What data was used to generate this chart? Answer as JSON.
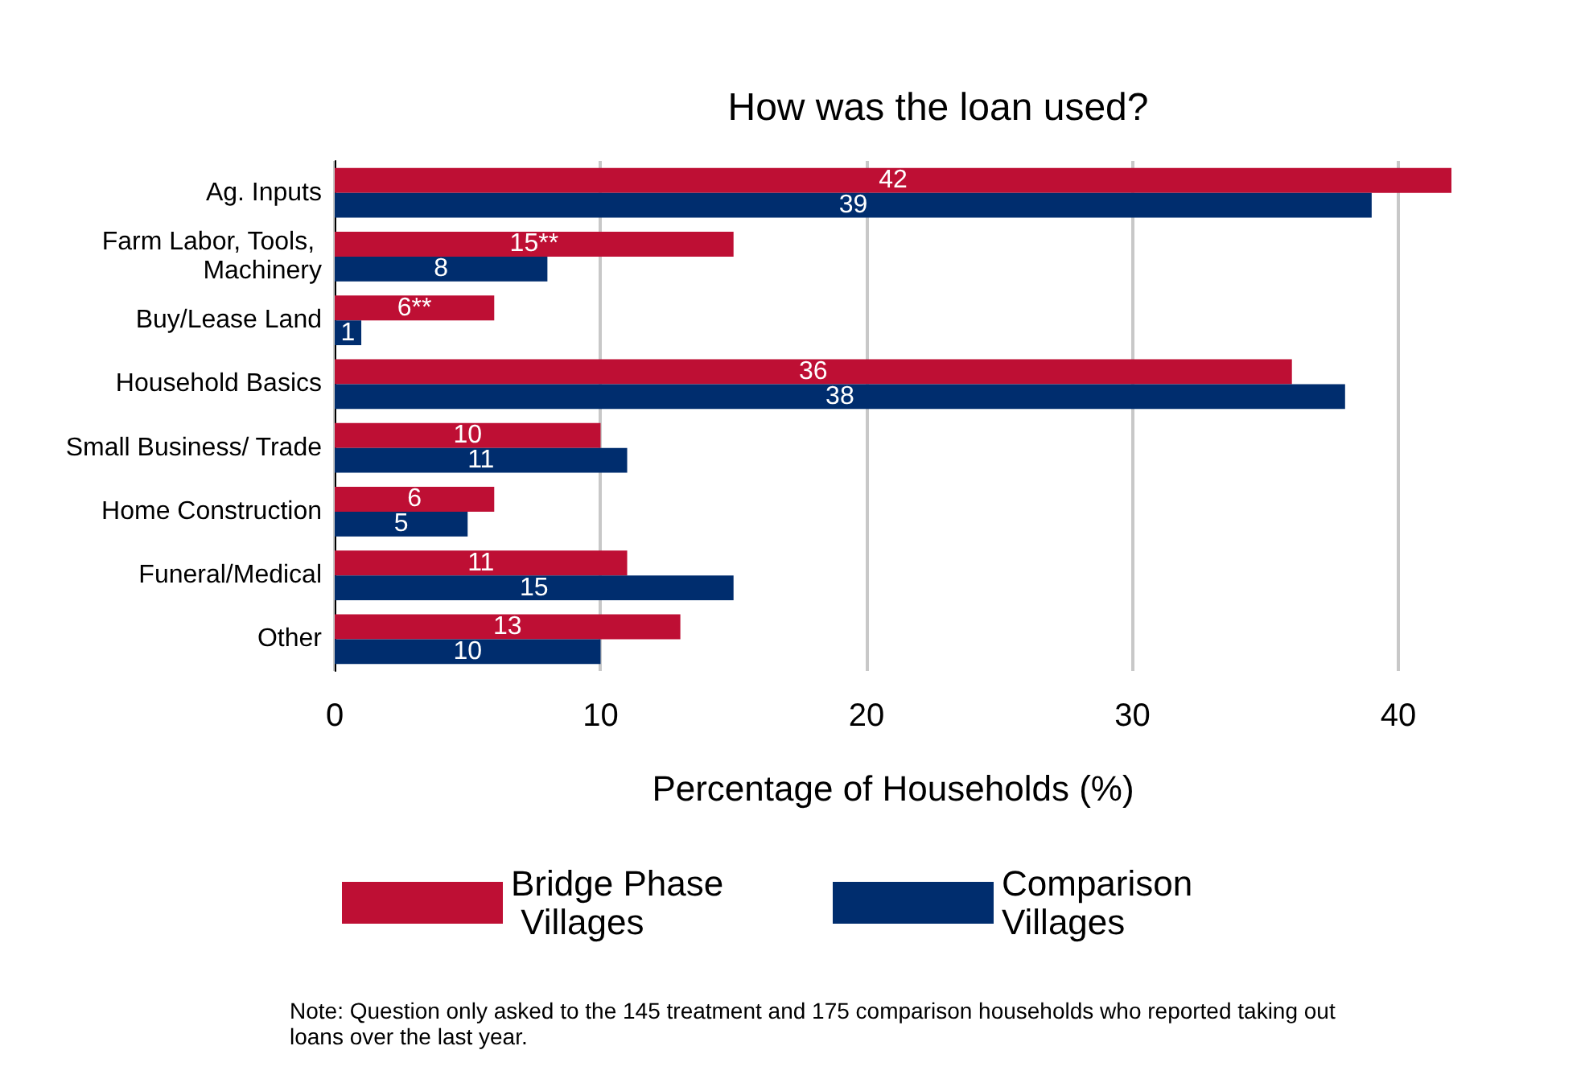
{
  "chart_data": {
    "type": "bar",
    "orientation": "horizontal",
    "title": "How was the loan used?",
    "xlabel": "Percentage of Households (%)",
    "categories": [
      "Ag. Inputs",
      "Farm Labor, Tools, Machinery",
      "Buy/Lease Land",
      "Household Basics",
      "Small Business/ Trade",
      "Home Construction",
      "Funeral/Medical",
      "Other"
    ],
    "series": [
      {
        "name": "Bridge Phase Villages",
        "color": "#be0f34",
        "values": [
          42,
          15,
          6,
          36,
          10,
          6,
          11,
          13
        ],
        "value_labels": [
          "42",
          "15**",
          "6**",
          "36",
          "10",
          "6",
          "11",
          "13"
        ]
      },
      {
        "name": "Comparison Villages",
        "color": "#002d6e",
        "values": [
          39,
          8,
          1,
          38,
          11,
          5,
          15,
          10
        ],
        "value_labels": [
          "39",
          "8",
          "1",
          "38",
          "11",
          "5",
          "15",
          "10"
        ]
      }
    ],
    "xlim": [
      0,
      42
    ],
    "xticks": [
      0,
      10,
      20,
      30,
      40
    ],
    "grid": "x",
    "legend": "bottom",
    "annotations": [
      "Note: Question only asked to the 145 treatment and 175 comparison households who reported taking out loans over the last year."
    ]
  }
}
